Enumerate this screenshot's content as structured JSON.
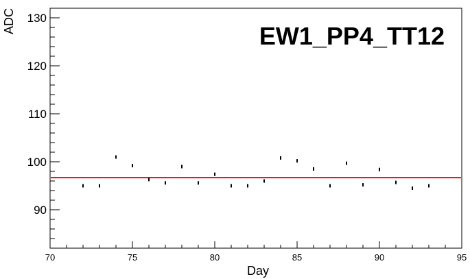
{
  "chart_data": {
    "type": "scatter",
    "title": "EW1_PP4_TT12",
    "xlabel": "Day",
    "ylabel": "ADC",
    "xlim": [
      70,
      95
    ],
    "ylim": [
      82,
      132
    ],
    "x_ticks": [
      70,
      75,
      80,
      85,
      90,
      95
    ],
    "y_ticks": [
      90,
      100,
      110,
      120,
      130
    ],
    "grid": false,
    "series": [
      {
        "x": [
          72,
          73,
          74,
          75,
          76,
          77,
          78,
          79,
          80,
          81,
          82,
          83,
          84,
          85,
          86,
          87,
          88,
          89,
          90,
          91,
          92,
          93
        ],
        "y": [
          95.0,
          95.0,
          101.0,
          99.2,
          96.3,
          95.6,
          99.0,
          95.6,
          97.4,
          95.0,
          95.0,
          96.0,
          100.8,
          100.2,
          98.5,
          95.0,
          99.7,
          95.2,
          98.4,
          95.7,
          94.5,
          95.0
        ]
      }
    ],
    "fit_line": {
      "y": 96.7,
      "color": "#ff0000"
    }
  }
}
